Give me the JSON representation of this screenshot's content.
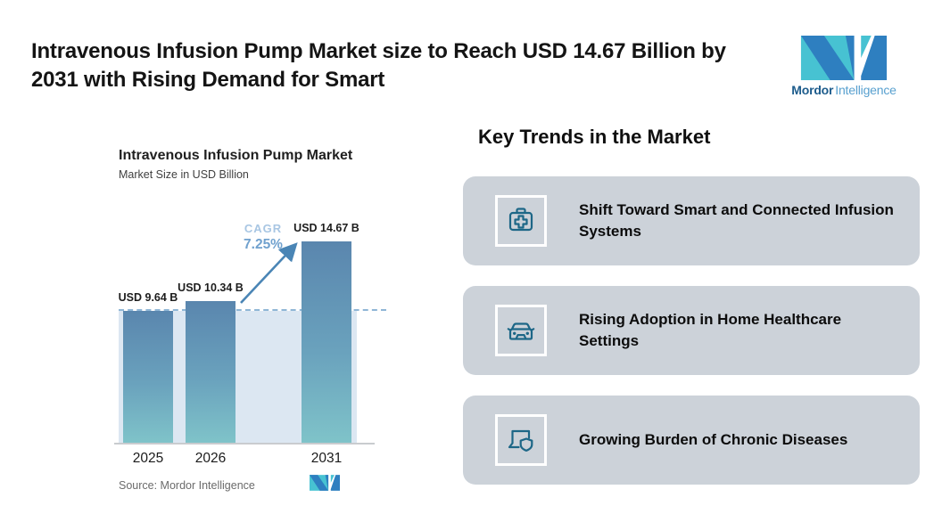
{
  "header": {
    "title_line1": "Intravenous Infusion Pump Market size to Reach USD 14.67 Billion by",
    "title_line2": "2031 with Rising Demand for Smart"
  },
  "brand": {
    "name_bold": "Mordor",
    "name_light": "Intelligence"
  },
  "chart": {
    "title": "Intravenous Infusion Pump Market",
    "subtitle": "Market Size in USD Billion",
    "cagr_label": "CAGR",
    "cagr_value": "7.25%",
    "source": "Source: Mordor Intelligence"
  },
  "chart_data": {
    "type": "bar",
    "title": "Intravenous Infusion Pump Market",
    "subtitle": "Market Size in USD Billion",
    "categories": [
      "2025",
      "2026",
      "2031"
    ],
    "values": [
      9.64,
      10.34,
      14.67
    ],
    "value_labels": [
      "USD 9.64 B",
      "USD 10.34 B",
      "USD 14.67 B"
    ],
    "ylabel": "Market Size in USD Billion",
    "ylim": [
      0,
      17
    ],
    "grid": false,
    "reference_line": 9.64,
    "annotations": [
      "CAGR 7.25%"
    ],
    "source": "Source: Mordor Intelligence"
  },
  "trends": {
    "heading": "Key Trends in the Market",
    "items": [
      {
        "icon": "first-aid-kit-icon",
        "label": "Shift Toward Smart and Connected Infusion Systems"
      },
      {
        "icon": "car-icon",
        "label": "Rising Adoption in Home Healthcare Settings"
      },
      {
        "icon": "laptop-shield-icon",
        "label": "Growing Burden of Chronic Diseases"
      }
    ]
  },
  "colors": {
    "bar_top": "#5a86ae",
    "bar_bottom": "#7fc3c9",
    "plot_fill": "#dce7f2",
    "dashed_line": "#8fb6d6",
    "arrow": "#4a85b5",
    "cagr_label": "#a8c6e3",
    "cagr_value": "#70a1ce",
    "card_background": "#ccd2d9",
    "icon_stroke": "#1d6787",
    "brand_teal": "#47c2d2",
    "brand_blue": "#2e7fc0"
  }
}
